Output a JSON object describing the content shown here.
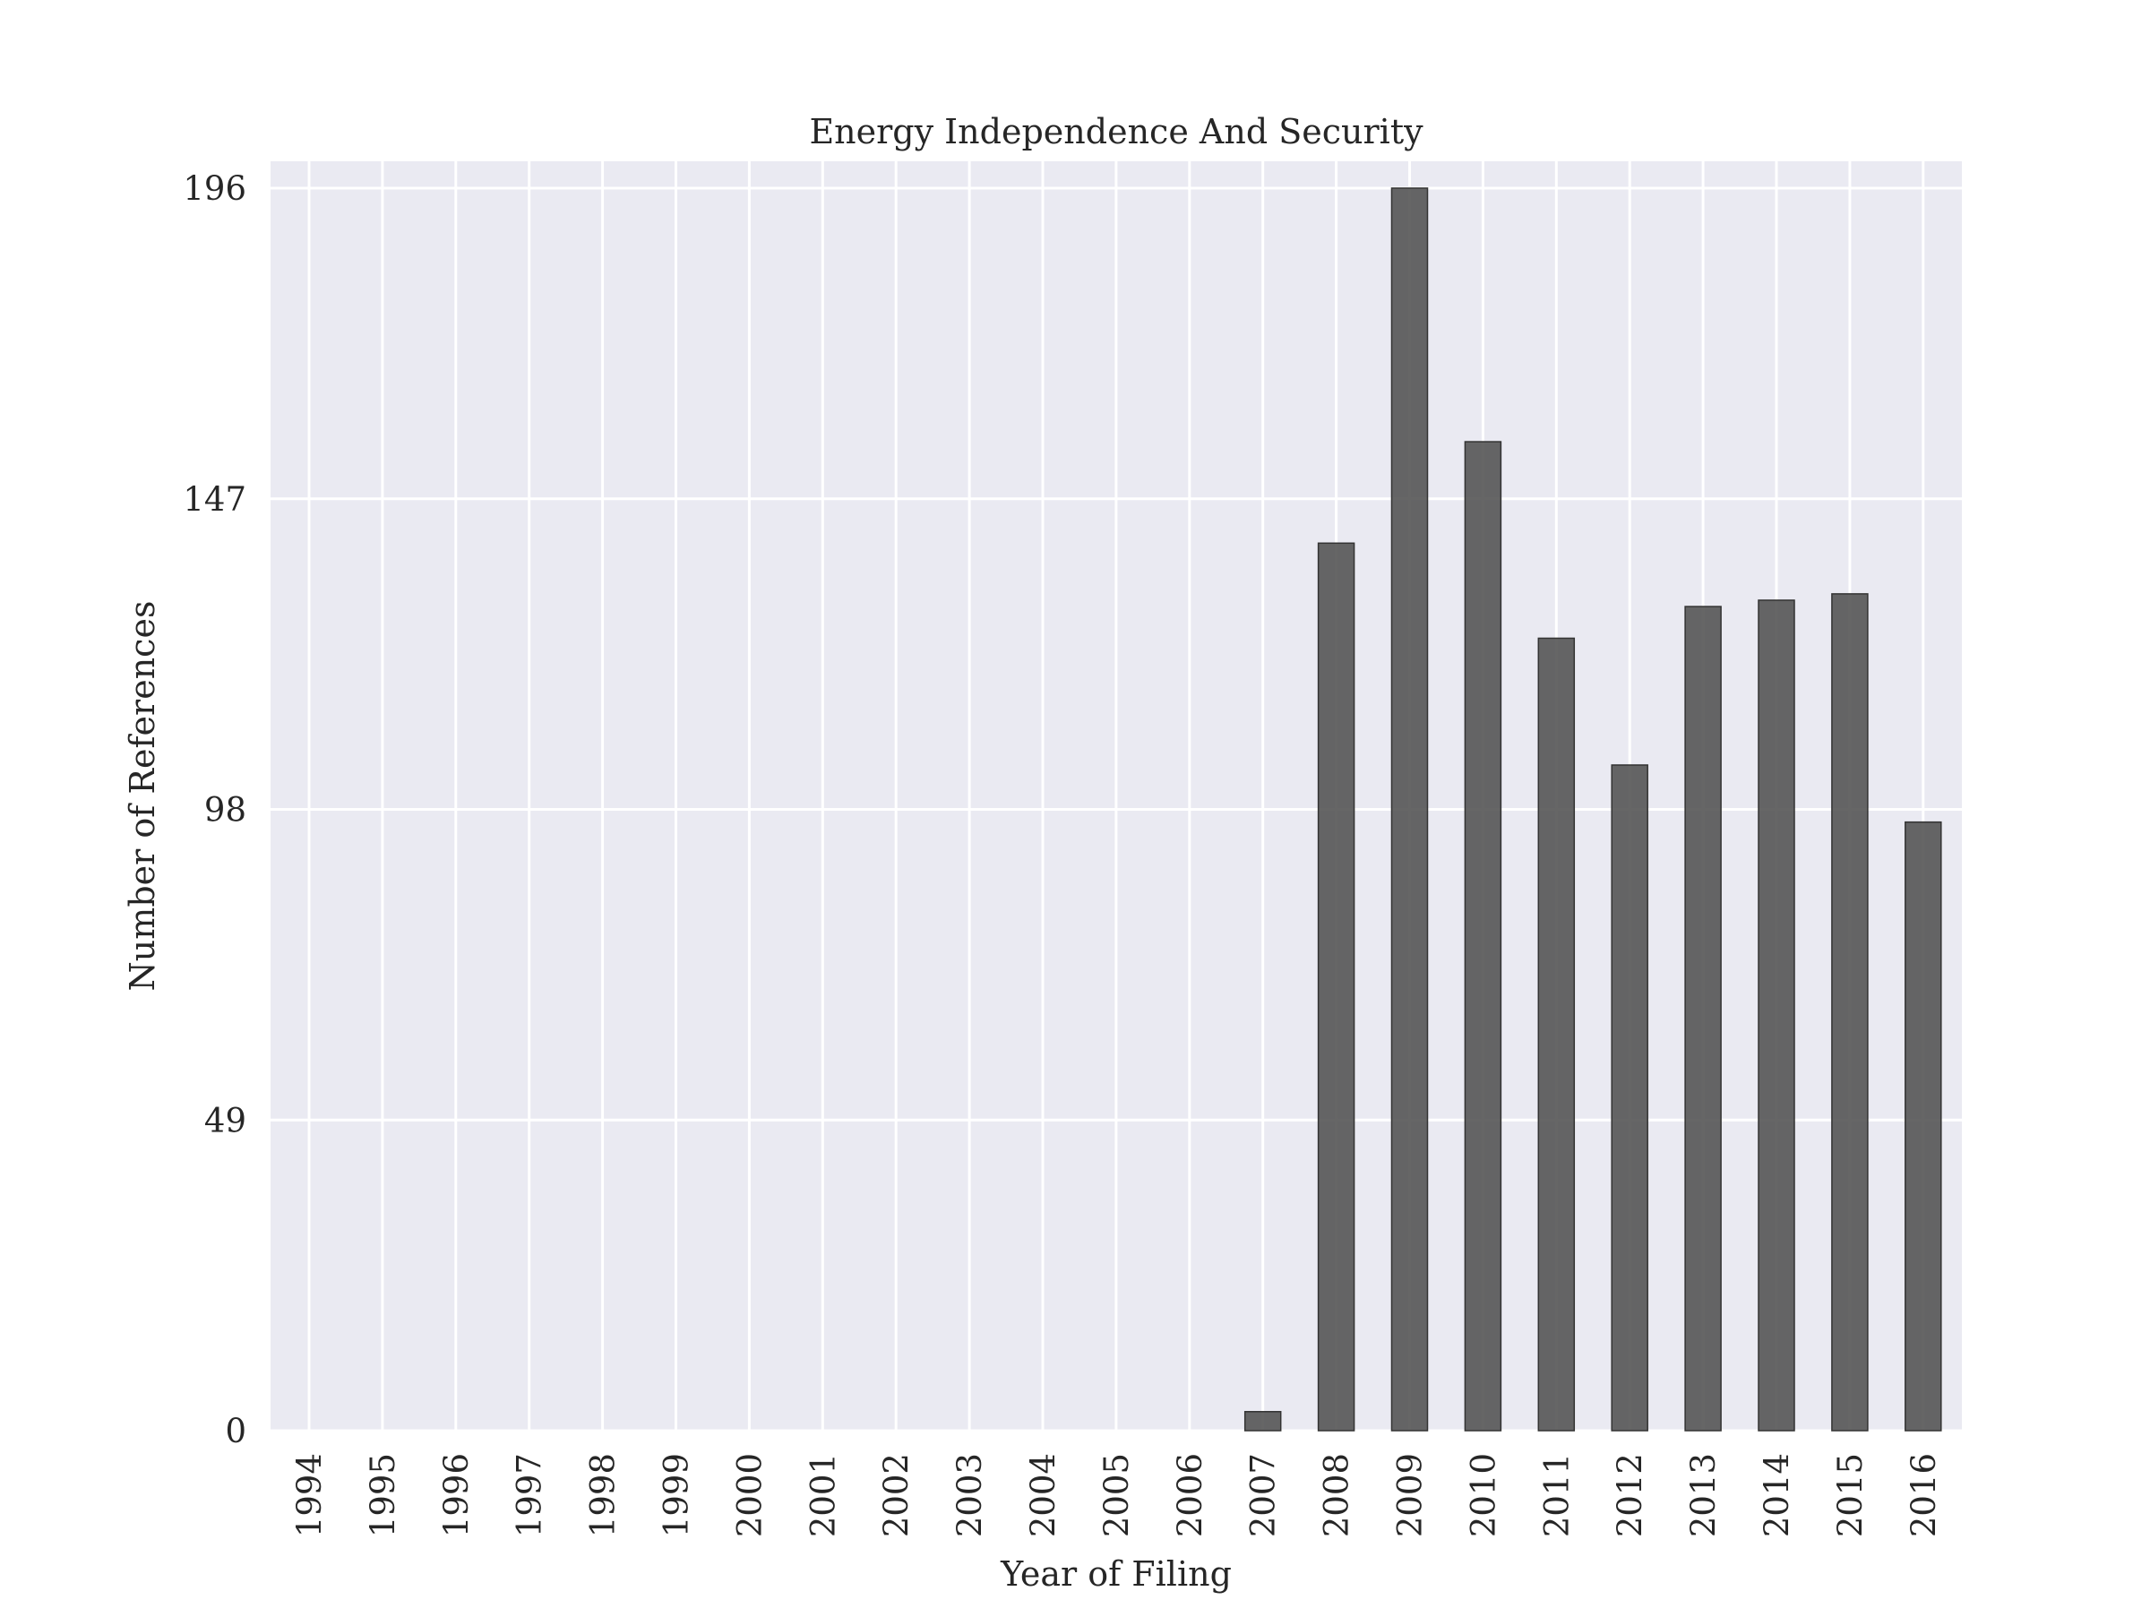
{
  "chart_data": {
    "type": "bar",
    "title": "Energy Independence And Security",
    "xlabel": "Year of Filing",
    "ylabel": "Number of References",
    "categories": [
      "1994",
      "1995",
      "1996",
      "1997",
      "1998",
      "1999",
      "2000",
      "2001",
      "2002",
      "2003",
      "2004",
      "2005",
      "2006",
      "2007",
      "2008",
      "2009",
      "2010",
      "2011",
      "2012",
      "2013",
      "2014",
      "2015",
      "2016"
    ],
    "values": [
      0,
      0,
      0,
      0,
      0,
      0,
      0,
      0,
      0,
      0,
      0,
      0,
      0,
      3,
      140,
      196,
      156,
      125,
      105,
      130,
      131,
      132,
      96
    ],
    "yticks": [
      0,
      49,
      98,
      147,
      196
    ],
    "ytick_labels": [
      "0",
      "49",
      "98",
      "147",
      "196"
    ],
    "ylim": [
      0,
      196
    ],
    "grid": true,
    "x_tick_rotation": "vertical",
    "colors": {
      "background": "#eaeaf2",
      "grid": "#ffffff",
      "bar_fill": "#555555",
      "bar_edge": "#333333",
      "text": "#262626"
    }
  }
}
